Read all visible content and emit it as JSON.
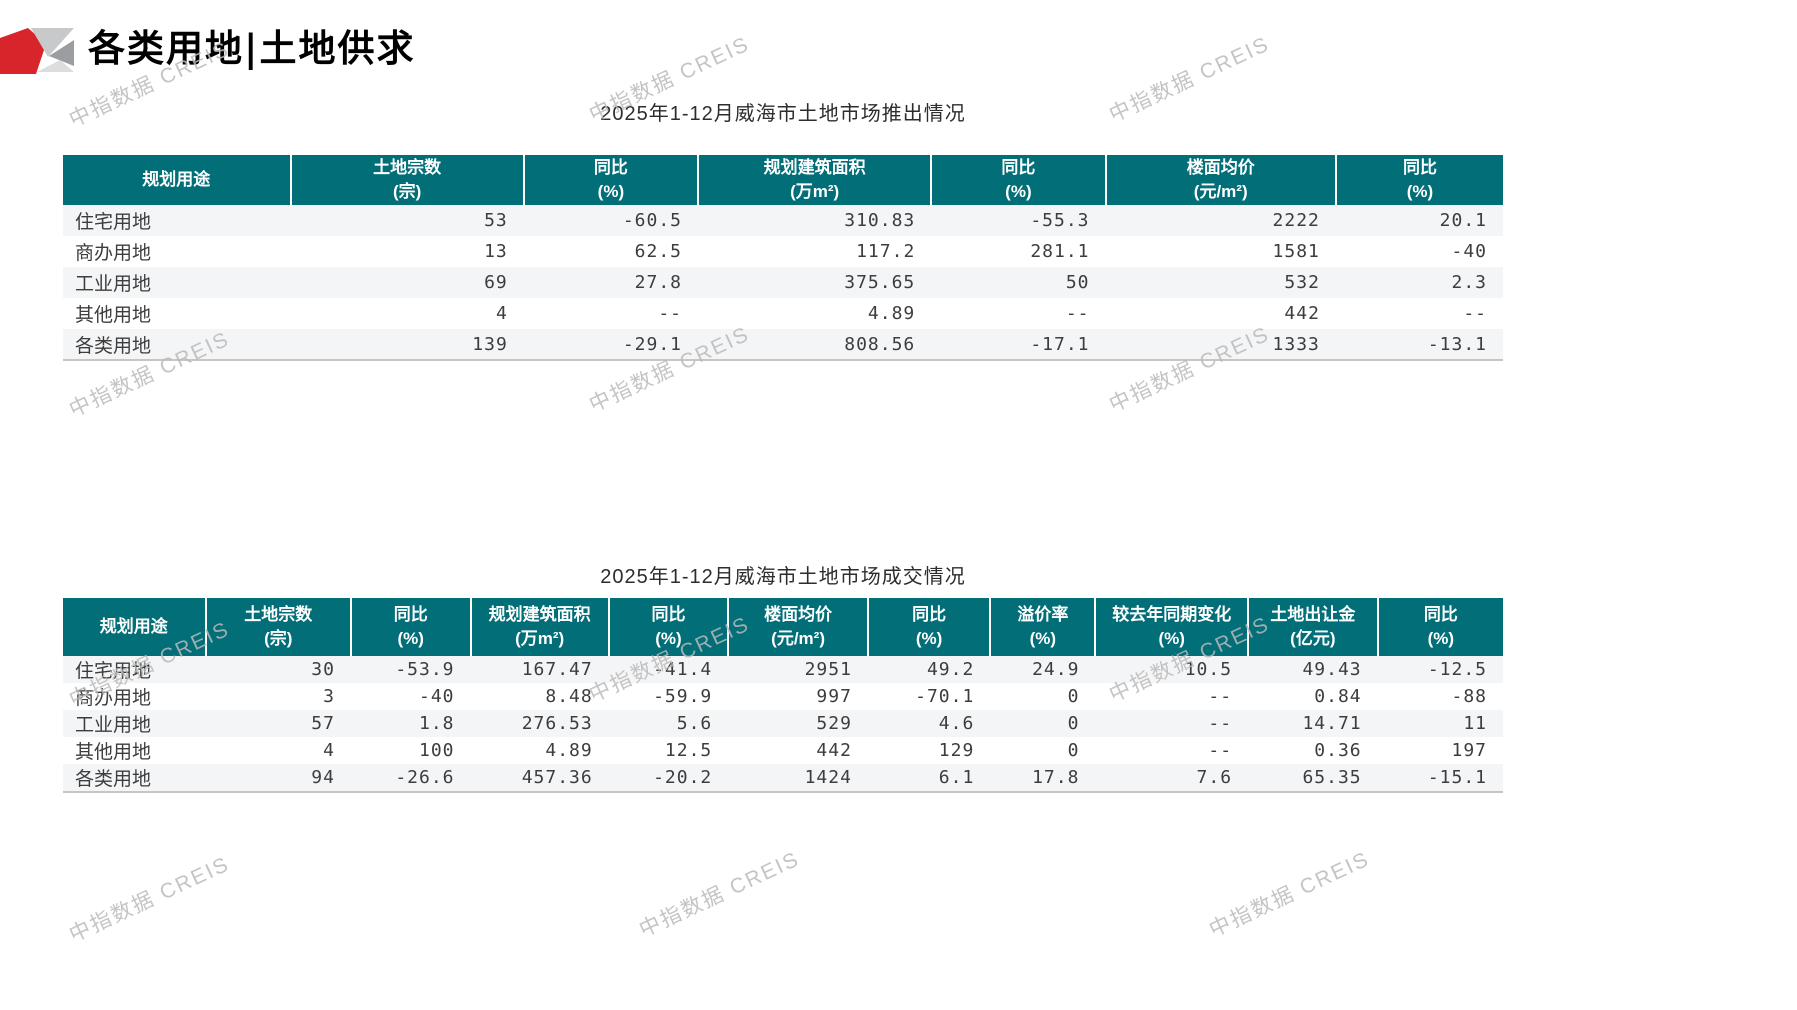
{
  "page": {
    "title": "各类用地|土地供求",
    "watermark": "中指数据 CREIS"
  },
  "colors": {
    "header_bg": "#016E78",
    "logo_red": "#D7252B",
    "row_stripe": "#F4F5F6"
  },
  "supply_table": {
    "title": "2025年1-12月威海市土地市场推出情况",
    "headers": [
      {
        "l1": "规划用途",
        "l2": ""
      },
      {
        "l1": "土地宗数",
        "l2": "(宗)"
      },
      {
        "l1": "同比",
        "l2": "(%)"
      },
      {
        "l1": "规划建筑面积",
        "l2": "(万m²)"
      },
      {
        "l1": "同比",
        "l2": "(%)"
      },
      {
        "l1": "楼面均价",
        "l2": "(元/m²)"
      },
      {
        "l1": "同比",
        "l2": "(%)"
      }
    ],
    "rows": [
      [
        "住宅用地",
        "53",
        "-60.5",
        "310.83",
        "-55.3",
        "2222",
        "20.1"
      ],
      [
        "商办用地",
        "13",
        "62.5",
        "117.2",
        "281.1",
        "1581",
        "-40"
      ],
      [
        "工业用地",
        "69",
        "27.8",
        "375.65",
        "50",
        "532",
        "2.3"
      ],
      [
        "其他用地",
        "4",
        "--",
        "4.89",
        "--",
        "442",
        "--"
      ],
      [
        "各类用地",
        "139",
        "-29.1",
        "808.56",
        "-17.1",
        "1333",
        "-13.1"
      ]
    ]
  },
  "deal_table": {
    "title": "2025年1-12月威海市土地市场成交情况",
    "headers": [
      {
        "l1": "规划用途",
        "l2": ""
      },
      {
        "l1": "土地宗数",
        "l2": "(宗)"
      },
      {
        "l1": "同比",
        "l2": "(%)"
      },
      {
        "l1": "规划建筑面积",
        "l2": "(万m²)"
      },
      {
        "l1": "同比",
        "l2": "(%)"
      },
      {
        "l1": "楼面均价",
        "l2": "(元/m²)"
      },
      {
        "l1": "同比",
        "l2": "(%)"
      },
      {
        "l1": "溢价率",
        "l2": "(%)"
      },
      {
        "l1": "较去年同期变化",
        "l2": "(%)"
      },
      {
        "l1": "土地出让金",
        "l2": "(亿元)"
      },
      {
        "l1": "同比",
        "l2": "(%)"
      }
    ],
    "rows": [
      [
        "住宅用地",
        "30",
        "-53.9",
        "167.47",
        "-41.4",
        "2951",
        "49.2",
        "24.9",
        "10.5",
        "49.43",
        "-12.5"
      ],
      [
        "商办用地",
        "3",
        "-40",
        "8.48",
        "-59.9",
        "997",
        "-70.1",
        "0",
        "--",
        "0.84",
        "-88"
      ],
      [
        "工业用地",
        "57",
        "1.8",
        "276.53",
        "5.6",
        "529",
        "4.6",
        "0",
        "--",
        "14.71",
        "11"
      ],
      [
        "其他用地",
        "4",
        "100",
        "4.89",
        "12.5",
        "442",
        "129",
        "0",
        "--",
        "0.36",
        "197"
      ],
      [
        "各类用地",
        "94",
        "-26.6",
        "457.36",
        "-20.2",
        "1424",
        "6.1",
        "17.8",
        "7.6",
        "65.35",
        "-15.1"
      ]
    ]
  }
}
